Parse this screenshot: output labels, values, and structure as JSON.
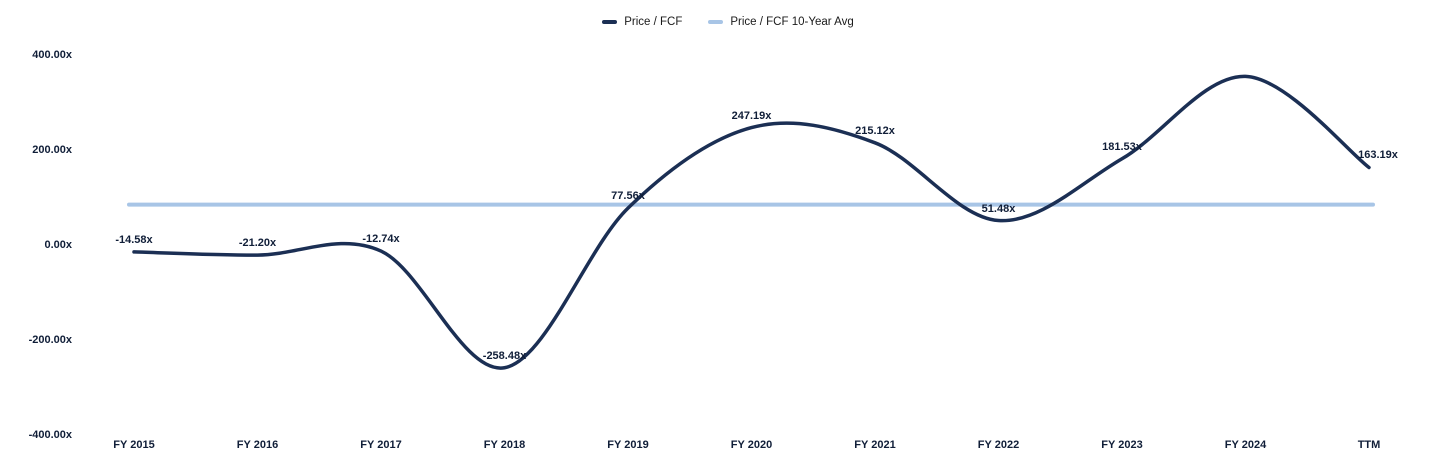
{
  "chart_data": {
    "type": "line",
    "title": "",
    "xlabel": "",
    "ylabel": "",
    "grid": false,
    "legend_position": "top-center",
    "ylim": [
      -400,
      400
    ],
    "categories": [
      "FY 2015",
      "FY 2016",
      "FY 2017",
      "FY 2018",
      "FY 2019",
      "FY 2020",
      "FY 2021",
      "FY 2022",
      "FY 2023",
      "FY 2024",
      "TTM"
    ],
    "y_ticks": [
      {
        "label": "400.00x",
        "value": 400
      },
      {
        "label": "200.00x",
        "value": 200
      },
      {
        "label": "0.00x",
        "value": 0
      },
      {
        "label": "-200.00x",
        "value": -200
      },
      {
        "label": "-400.00x",
        "value": -400
      }
    ],
    "series": [
      {
        "name": "Price / FCF",
        "color": "#1b2f54",
        "values": [
          -14.58,
          -21.2,
          -12.74,
          -258.48,
          77.56,
          247.19,
          215.12,
          51.48,
          181.53,
          355,
          163.19
        ],
        "point_labels": [
          "-14.58x",
          "-21.20x",
          "-12.74x",
          "-258.48x",
          "77.56x",
          "247.19x",
          "215.12x",
          "51.48x",
          "181.53x",
          null,
          "163.19x"
        ]
      },
      {
        "name": "Price / FCF 10-Year Avg",
        "color": "#a8c5e6",
        "value": 85
      }
    ]
  }
}
